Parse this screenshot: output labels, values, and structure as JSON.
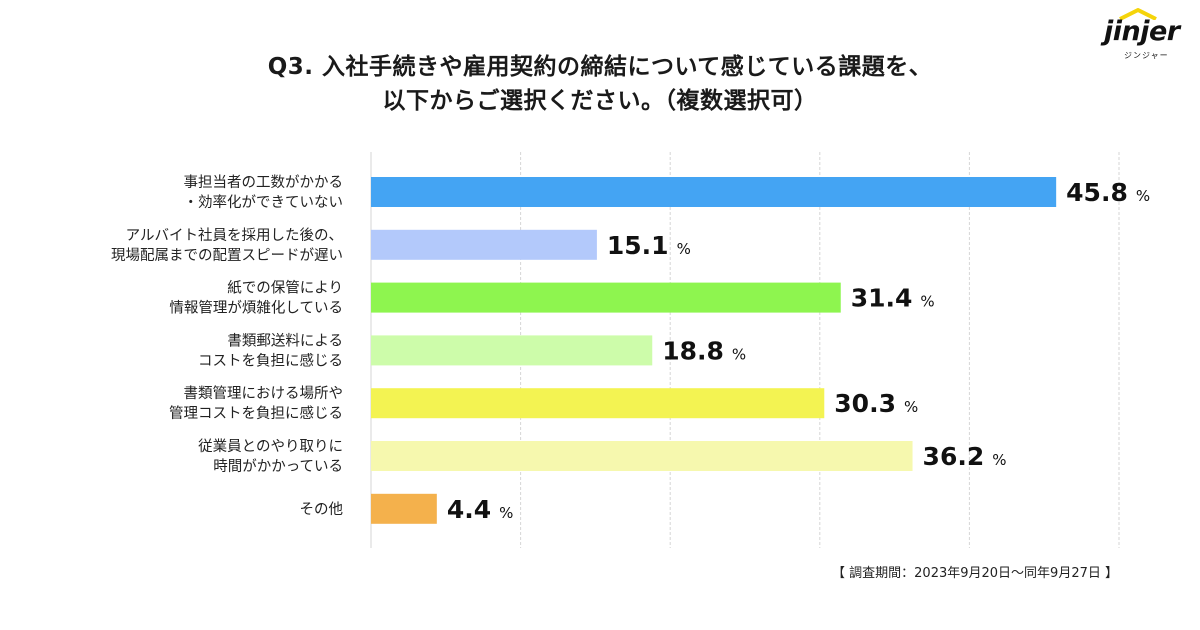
{
  "header": {
    "title_line1": "Q3. 入社手続きや雇用契約の締結について感じている課題を、",
    "title_line2": "以下からご選択ください。（複数選択可）"
  },
  "logo": {
    "text": "jinjer",
    "sub": "ジンジャー"
  },
  "note": "【 調査期間：2023年9月20日～同年9月27日 】",
  "chart_data": {
    "type": "bar",
    "orientation": "horizontal",
    "title": "Q3. 入社手続きや雇用契約の締結について感じている課題を、以下からご選択ください。（複数選択可）",
    "unit": "%",
    "xlim": [
      0,
      50
    ],
    "grid": true,
    "categories": [
      [
        "事担当者の工数がかかる",
        "・効率化ができていない"
      ],
      [
        "アルバイト社員を採用した後の、",
        "現場配属までの配置スピードが遅い"
      ],
      [
        "紙での保管により",
        "情報管理が煩雑化している"
      ],
      [
        "書類郵送料による",
        "コストを負担に感じる"
      ],
      [
        "書類管理における場所や",
        "管理コストを負担に感じる"
      ],
      [
        "従業員とのやり取りに",
        "時間がかかっている"
      ],
      [
        "その他"
      ]
    ],
    "values": [
      45.8,
      15.1,
      31.4,
      18.8,
      30.3,
      36.2,
      4.4
    ],
    "value_labels": [
      "45.8",
      "15.1",
      "31.4",
      "18.8",
      "30.3",
      "36.2",
      "4.4"
    ],
    "colors": [
      "#44a4f3",
      "#b3c9fb",
      "#8ef54f",
      "#cdfcaa",
      "#f3f352",
      "#f6f8ae",
      "#f4b14c"
    ]
  }
}
